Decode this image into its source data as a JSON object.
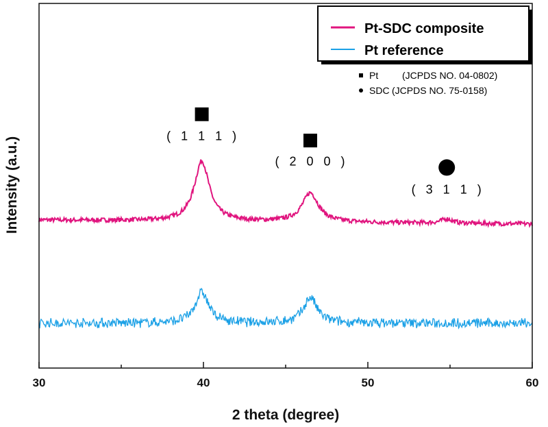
{
  "chart_data": {
    "type": "line",
    "title": "",
    "xlabel": "2 theta (degree)",
    "ylabel": "Intensity (a.u.)",
    "xlim": [
      30,
      60
    ],
    "ylim": [
      0,
      100
    ],
    "xticks": [
      30,
      40,
      50,
      60
    ],
    "xticks_minor": [
      35,
      45,
      55
    ],
    "yticks": [],
    "grid": false,
    "legend_position": "top-right",
    "series": [
      {
        "name": "Pt-SDC composite",
        "color": "#e0147e",
        "baseline_start": 40.6,
        "baseline_end": 39.5,
        "noise": 0.6,
        "peaks": [
          {
            "x": 39.9,
            "height": 16.5,
            "width": 0.55
          },
          {
            "x": 46.5,
            "height": 8,
            "width": 0.6
          },
          {
            "x": 54.8,
            "height": 1.2,
            "width": 0.4
          }
        ]
      },
      {
        "name": "Pt reference",
        "color": "#1aa0e6",
        "baseline_start": 12.3,
        "baseline_end": 12.3,
        "noise": 1.0,
        "peaks": [
          {
            "x": 39.9,
            "height": 8.5,
            "width": 0.5
          },
          {
            "x": 46.5,
            "height": 7,
            "width": 0.5
          }
        ]
      }
    ],
    "annotations": [
      {
        "marker": "square",
        "x": 39.9,
        "y": 69.6,
        "label": "( 1 1 1 )",
        "label_y": 62.5
      },
      {
        "marker": "square",
        "x": 46.5,
        "y": 62.4,
        "label": "( 2 0 0 )",
        "label_y": 55.5
      },
      {
        "marker": "circle",
        "x": 54.8,
        "y": 55.0,
        "label": "( 3 1 1 )",
        "label_y": 47.8
      }
    ],
    "reference_legend": [
      {
        "marker": "square",
        "phase": "Pt",
        "card": "(JCPDS NO. 04-0802)"
      },
      {
        "marker": "circle",
        "phase": "SDC",
        "card": "(JCPDS NO. 75-0158)"
      }
    ]
  }
}
